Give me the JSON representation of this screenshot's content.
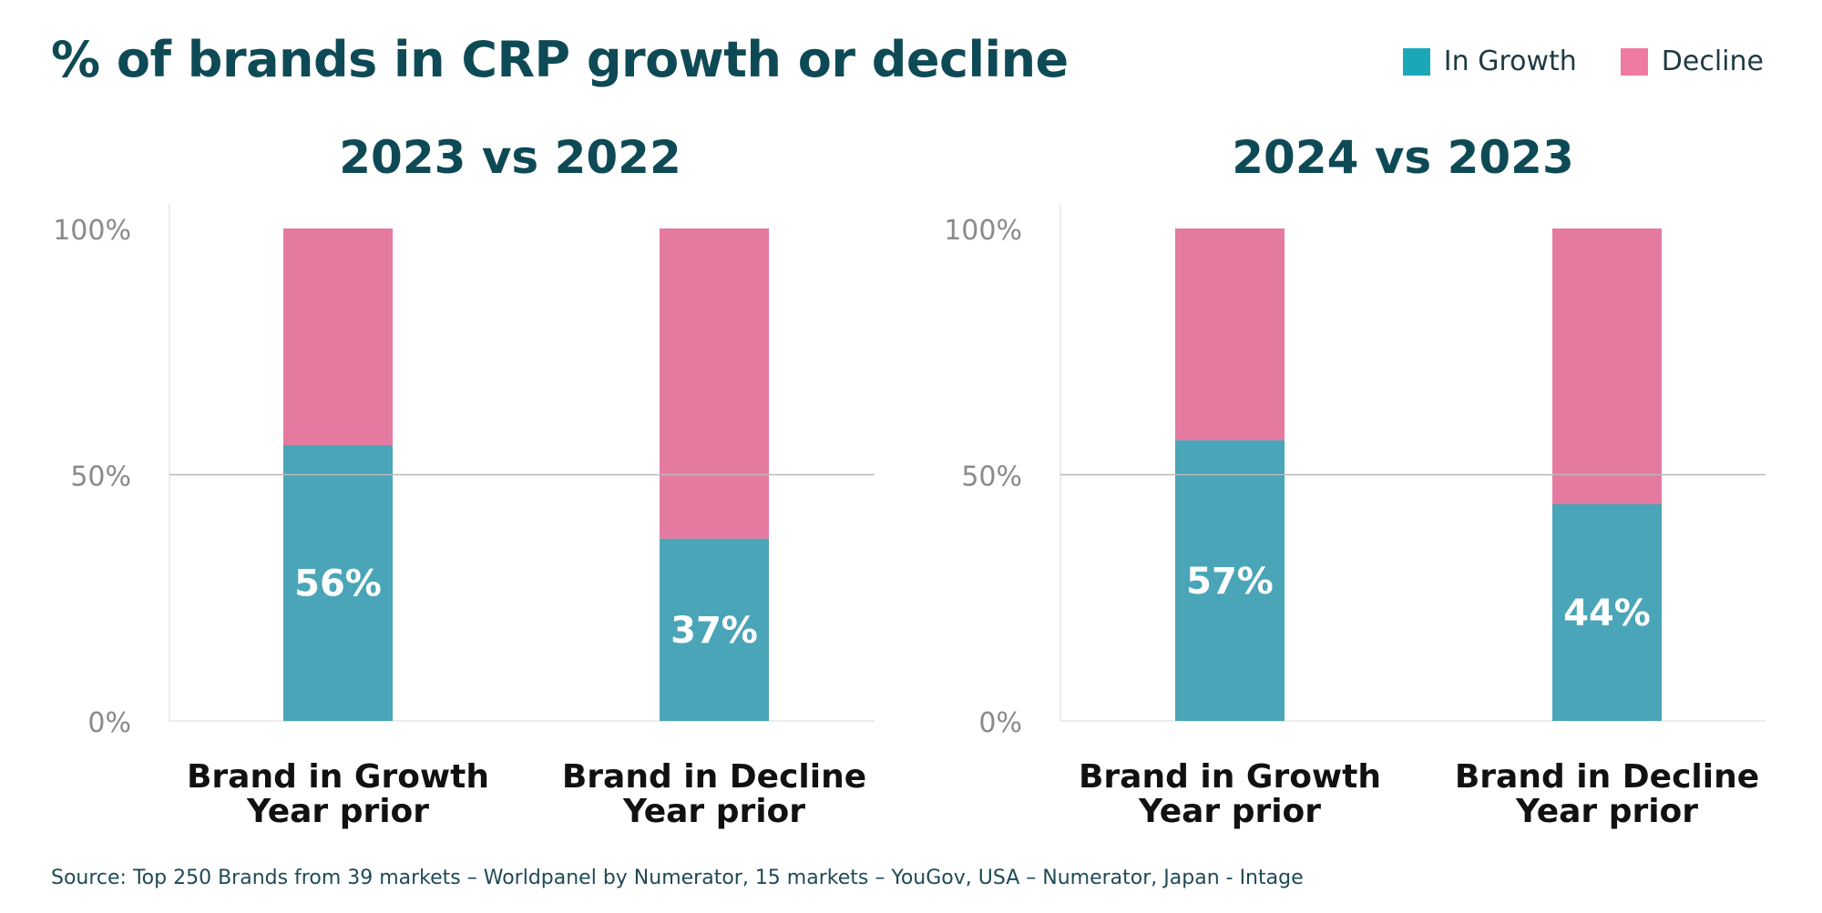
{
  "title": "% of brands in CRP growth or decline",
  "legend": [
    {
      "label": "In Growth",
      "color": "#1aa8b8"
    },
    {
      "label": "Decline",
      "color": "#f07ba0"
    }
  ],
  "source": "Source: Top 250 Brands from 39 markets – Worldpanel by Numerator, 15 markets – YouGov, USA – Numerator, Japan - Intage",
  "chart_data": [
    {
      "type": "bar",
      "stacked": true,
      "title": "2023 vs 2022",
      "categories": [
        [
          "Brand in Growth",
          "Year prior"
        ],
        [
          "Brand in Decline",
          "Year prior"
        ]
      ],
      "series": [
        {
          "name": "In Growth",
          "values": [
            56,
            37
          ],
          "color": "#4aa5b8"
        },
        {
          "name": "Decline",
          "values": [
            44,
            63
          ],
          "color": "#e57aa0"
        }
      ],
      "data_labels": [
        "56%",
        "37%"
      ],
      "yticks": [
        "0%",
        "50%",
        "100%"
      ],
      "ylim": [
        0,
        100
      ],
      "grid": "50% line"
    },
    {
      "type": "bar",
      "stacked": true,
      "title": "2024 vs 2023",
      "categories": [
        [
          "Brand in Growth",
          "Year prior"
        ],
        [
          "Brand in Decline",
          "Year prior"
        ]
      ],
      "series": [
        {
          "name": "In Growth",
          "values": [
            57,
            44
          ],
          "color": "#4aa5b8"
        },
        {
          "name": "Decline",
          "values": [
            43,
            56
          ],
          "color": "#e57aa0"
        }
      ],
      "data_labels": [
        "57%",
        "44%"
      ],
      "yticks": [
        "0%",
        "50%",
        "100%"
      ],
      "ylim": [
        0,
        100
      ],
      "grid": "50% line"
    }
  ]
}
